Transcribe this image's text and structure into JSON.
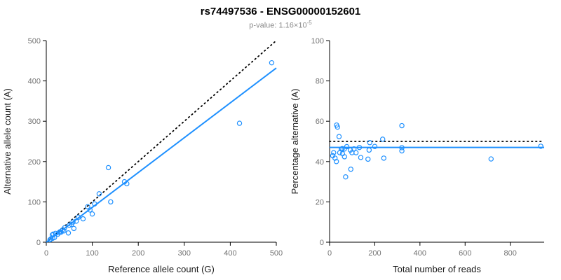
{
  "header": {
    "title": "rs74497536 - ENSG00000152601",
    "pvalue_prefix": "p-value: 1.16×10",
    "pvalue_exponent": "-5"
  },
  "colors": {
    "point": "#1E90FF",
    "fit_line": "#1E90FF",
    "reference_line": "#000000",
    "tick_label": "#737373",
    "axis_label": "#1a1a1a",
    "axis_line": "#000000"
  },
  "chart_data": [
    {
      "type": "scatter",
      "title": "",
      "xlabel": "Reference allele count (G)",
      "ylabel": "Alternative allele count (A)",
      "xlim": [
        0,
        500
      ],
      "ylim": [
        0,
        500
      ],
      "xticks": [
        0,
        100,
        200,
        300,
        400,
        500
      ],
      "yticks": [
        0,
        100,
        200,
        300,
        400,
        500
      ],
      "legend": "none",
      "grid": false,
      "points": [
        [
          8,
          6
        ],
        [
          10,
          8
        ],
        [
          13,
          18
        ],
        [
          15,
          20
        ],
        [
          14,
          10
        ],
        [
          18,
          12
        ],
        [
          20,
          22
        ],
        [
          25,
          20
        ],
        [
          28,
          24
        ],
        [
          30,
          26
        ],
        [
          32,
          25
        ],
        [
          35,
          30
        ],
        [
          38,
          28
        ],
        [
          40,
          36
        ],
        [
          48,
          23
        ],
        [
          50,
          42
        ],
        [
          55,
          44
        ],
        [
          58,
          50
        ],
        [
          60,
          34
        ],
        [
          65,
          52
        ],
        [
          70,
          62
        ],
        [
          80,
          58
        ],
        [
          90,
          88
        ],
        [
          95,
          80
        ],
        [
          100,
          70
        ],
        [
          105,
          95
        ],
        [
          115,
          120
        ],
        [
          140,
          100
        ],
        [
          135,
          185
        ],
        [
          170,
          150
        ],
        [
          175,
          145
        ],
        [
          420,
          295
        ],
        [
          490,
          445
        ]
      ],
      "lines": [
        {
          "name": "identity-line",
          "style": "dotted",
          "color": "#000000",
          "from": [
            0,
            0
          ],
          "to": [
            500,
            500
          ]
        },
        {
          "name": "fit-line",
          "style": "solid",
          "color": "#1E90FF",
          "from": [
            0,
            0
          ],
          "to": [
            500,
            432
          ]
        }
      ]
    },
    {
      "type": "scatter",
      "title": "",
      "xlabel": "Total number of reads",
      "ylabel": "Percentage alternative (A)",
      "xlim": [
        0,
        950
      ],
      "ylim": [
        0,
        100
      ],
      "xticks": [
        0,
        200,
        400,
        600,
        800
      ],
      "yticks": [
        0,
        20,
        40,
        60,
        80,
        100
      ],
      "legend": "none",
      "grid": false,
      "points": [
        [
          14,
          42.9
        ],
        [
          18,
          44.4
        ],
        [
          31,
          58.1
        ],
        [
          35,
          57.1
        ],
        [
          24,
          41.7
        ],
        [
          30,
          40.0
        ],
        [
          42,
          52.4
        ],
        [
          45,
          44.4
        ],
        [
          52,
          46.2
        ],
        [
          56,
          46.4
        ],
        [
          57,
          43.9
        ],
        [
          65,
          46.2
        ],
        [
          66,
          42.4
        ],
        [
          76,
          47.4
        ],
        [
          71,
          32.4
        ],
        [
          92,
          45.7
        ],
        [
          99,
          44.4
        ],
        [
          108,
          46.3
        ],
        [
          94,
          36.2
        ],
        [
          117,
          44.4
        ],
        [
          132,
          47.0
        ],
        [
          138,
          42.0
        ],
        [
          178,
          49.4
        ],
        [
          175,
          45.7
        ],
        [
          170,
          41.2
        ],
        [
          200,
          47.5
        ],
        [
          235,
          51.1
        ],
        [
          240,
          41.7
        ],
        [
          320,
          57.8
        ],
        [
          320,
          46.9
        ],
        [
          320,
          45.3
        ],
        [
          715,
          41.3
        ],
        [
          935,
          47.6
        ]
      ],
      "lines": [
        {
          "name": "expected-50-line",
          "style": "dotted",
          "color": "#000000",
          "from": [
            0,
            50
          ],
          "to": [
            950,
            50
          ]
        },
        {
          "name": "fit-line",
          "style": "solid",
          "color": "#1E90FF",
          "from": [
            0,
            47
          ],
          "to": [
            950,
            47
          ]
        }
      ]
    }
  ]
}
